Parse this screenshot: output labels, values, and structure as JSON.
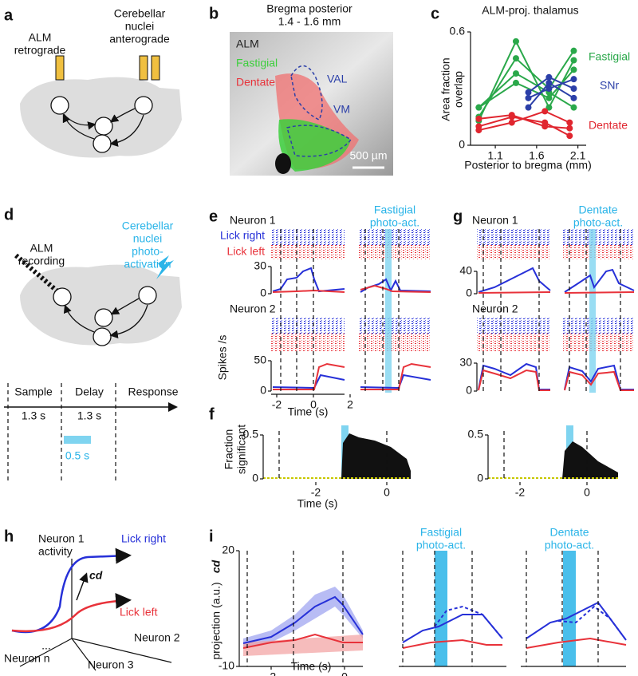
{
  "a": {
    "letter": "a",
    "syringe1": [
      "ALM",
      "retrograde"
    ],
    "syringe2": [
      "Cerebellar",
      "nuclei",
      "anterograde"
    ]
  },
  "b": {
    "letter": "b",
    "title": [
      "Bregma posterior",
      "1.4 - 1.6 mm"
    ],
    "legend": [
      "ALM",
      "Fastigial",
      "Dentate"
    ],
    "regions": [
      "VAL",
      "VM"
    ],
    "scale_bar": "500 µm"
  },
  "c": {
    "letter": "c",
    "chart_data": {
      "type": "line",
      "title": "ALM-proj. thalamus",
      "ylabel": [
        "Area fraction",
        "overlap"
      ],
      "xlabel": "Posterior to bregma (mm)",
      "xlim": [
        0.8,
        2.2
      ],
      "ylim": [
        0,
        0.6
      ],
      "xticks": [
        1.1,
        1.6,
        2.1
      ],
      "yticks": [
        0,
        0.6
      ],
      "series": [
        {
          "name": "Fastigial",
          "color": "#2aa84a",
          "x": [
            0.9,
            1.35,
            1.75,
            2.05
          ],
          "lines": [
            [
              0.15,
              0.46,
              0.3,
              0.5
            ],
            [
              0.13,
              0.55,
              0.2,
              0.45
            ],
            [
              0.2,
              0.33,
              0.25,
              0.4
            ],
            [
              0.2,
              0.38,
              0.28,
              0.2
            ]
          ]
        },
        {
          "name": "SNr",
          "color": "#2b3fa8",
          "x": [
            1.5,
            1.75,
            2.05
          ],
          "lines": [
            [
              0.25,
              0.3,
              0.35
            ],
            [
              0.2,
              0.33,
              0.25
            ],
            [
              0.28,
              0.36,
              0.3
            ]
          ]
        },
        {
          "name": "Dentate",
          "color": "#e0262f",
          "x": [
            0.9,
            1.3,
            1.7,
            2.0
          ],
          "lines": [
            [
              0.1,
              0.15,
              0.12,
              0.05
            ],
            [
              0.08,
              0.12,
              0.18,
              0.12
            ],
            [
              0.14,
              0.16,
              0.1,
              0.09
            ]
          ]
        }
      ]
    }
  },
  "d": {
    "letter": "d",
    "recording": [
      "ALM",
      "recording"
    ],
    "stim": [
      "Cerebellar",
      "nuclei",
      "photo-",
      "activation"
    ],
    "epochs": [
      "Sample",
      "Delay",
      "Response"
    ],
    "durations": [
      "1.3 s",
      "1.3 s"
    ],
    "photo_duration": "0.5 s"
  },
  "e": {
    "letter": "e",
    "neurons": [
      "Neuron 1",
      "Neuron 2"
    ],
    "trial_types": [
      "Lick right",
      "Lick left"
    ],
    "condition": [
      "Fastigial",
      "photo-act."
    ],
    "ylabel": "Spikes /s",
    "xlabel": "Time (s)",
    "yticks_1": [
      0,
      30
    ],
    "yticks_2": [
      0,
      50
    ],
    "xticks": [
      -2,
      0,
      2
    ]
  },
  "f": {
    "letter": "f",
    "ylabel": [
      "Fraction",
      "significant"
    ],
    "xlabel": "Time (s)",
    "yticks": [
      0,
      0.5
    ],
    "xticks": [
      -2,
      0
    ]
  },
  "g": {
    "letter": "g",
    "neurons": [
      "Neuron 1",
      "Neuron 2"
    ],
    "condition": [
      "Dentate",
      "photo-act."
    ],
    "yticks_1": [
      0,
      40
    ],
    "yticks_2": [
      0,
      30
    ]
  },
  "h": {
    "letter": "h",
    "labels": [
      "Neuron 1",
      "activity",
      "Lick right",
      "cd",
      "Lick left",
      "Neuron 2",
      "Neuron n",
      "Neuron 3",
      "..."
    ]
  },
  "i": {
    "letter": "i",
    "ylabel": [
      "cd",
      "projection (a.u.)"
    ],
    "conditions": [
      [
        "Fastigial",
        "photo-act."
      ],
      [
        "Dentate",
        "photo-act."
      ]
    ],
    "xlabel": "Time (s)",
    "yticks": [
      -10,
      20
    ],
    "xticks": [
      -2,
      0
    ]
  }
}
